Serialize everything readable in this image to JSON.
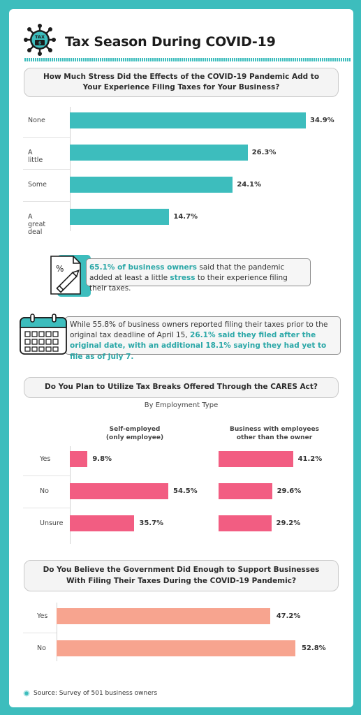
{
  "header": {
    "title": "Tax Season During COVID-19",
    "logo_text": "TAX"
  },
  "colors": {
    "teal": "#3dbdbd",
    "pink": "#f25d82",
    "salmon": "#f7a48f",
    "highlight": "#2aa7a7"
  },
  "chart_data": [
    {
      "type": "bar",
      "orientation": "horizontal",
      "title": "How Much Stress Did the Effects of the COVID-19 Pandemic Add to\nYour Experience Filing Taxes for Your Business?",
      "categories": [
        "None",
        "A little",
        "Some",
        "A great deal"
      ],
      "values": [
        34.9,
        26.3,
        24.1,
        14.7
      ],
      "labels": [
        "34.9%",
        "26.3%",
        "24.1%",
        "14.7%"
      ]
    },
    {
      "type": "bar",
      "orientation": "horizontal",
      "title": "Do You Plan to Utilize Tax Breaks Offered Through the CARES Act?",
      "subtitle": "By Employment Type",
      "categories": [
        "Yes",
        "No",
        "Unsure"
      ],
      "series": [
        {
          "name": "Self-employed\n(only employee)",
          "values": [
            9.8,
            54.5,
            35.7
          ],
          "labels": [
            "9.8%",
            "54.5%",
            "35.7%"
          ]
        },
        {
          "name": "Business with employees\nother than the owner",
          "values": [
            41.2,
            29.6,
            29.2
          ],
          "labels": [
            "41.2%",
            "29.6%",
            "29.2%"
          ]
        }
      ]
    },
    {
      "type": "bar",
      "orientation": "horizontal",
      "title": "Do You Believe the Government Did Enough to Support Businesses\nWith Filing Their Taxes During the COVID-19 Pandemic?",
      "categories": [
        "Yes",
        "No"
      ],
      "values": [
        47.2,
        52.8
      ],
      "labels": [
        "47.2%",
        "52.8%"
      ]
    }
  ],
  "callouts": {
    "stress": {
      "icon": "percent-document-pencil-icon",
      "highlight_1": "65.1% of business owners",
      "text_1": " said that the pandemic added at least a little ",
      "highlight_2": "stress",
      "text_2": " to their experience filing their taxes."
    },
    "deadline": {
      "icon": "calendar-icon",
      "text_1": "While 55.8% of business owners reported filing their taxes prior to the original tax deadline of April 15, ",
      "highlight_1": "26.1% said they filed after the original date, with an additional 18.1% saying they had yet to file as of July 7."
    }
  },
  "footer": {
    "source": "Source: Survey of 501 business owners"
  }
}
